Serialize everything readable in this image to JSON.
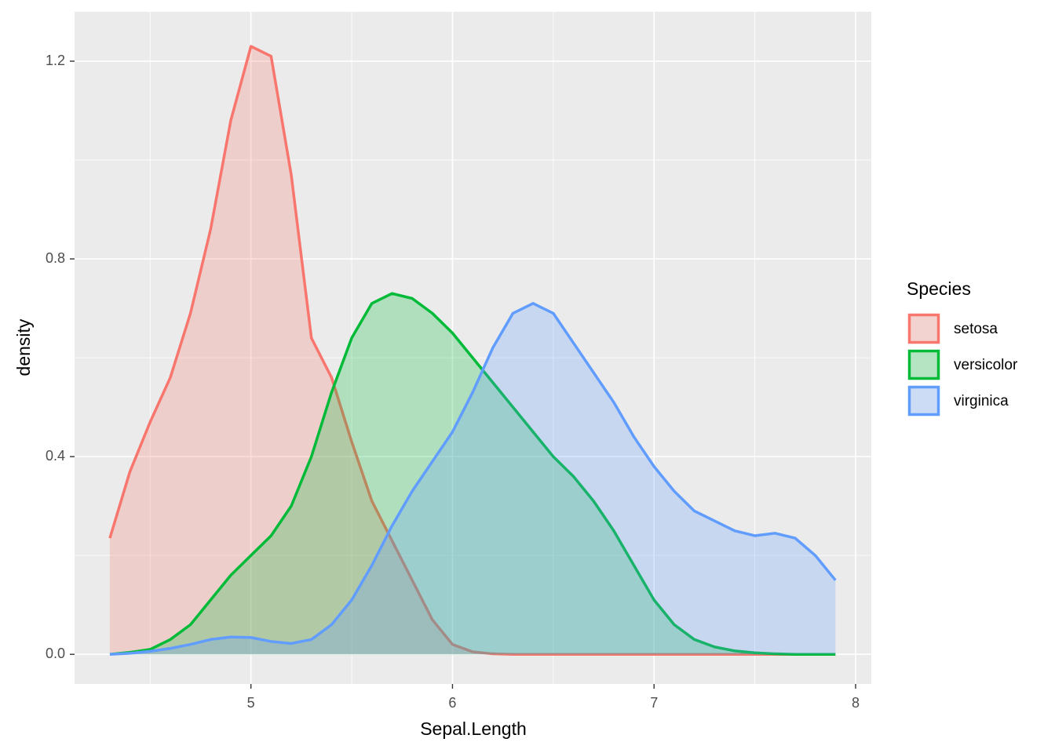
{
  "chart_data": {
    "type": "density",
    "x_label": "Sepal.Length",
    "y_label": "density",
    "legend_title": "Species",
    "legend_position": "right",
    "x": [
      4.3,
      4.4,
      4.5,
      4.6,
      4.7,
      4.8,
      4.9,
      5.0,
      5.1,
      5.2,
      5.3,
      5.4,
      5.5,
      5.6,
      5.7,
      5.8,
      5.9,
      6.0,
      6.1,
      6.2,
      6.3,
      6.4,
      6.5,
      6.6,
      6.7,
      6.8,
      6.9,
      7.0,
      7.1,
      7.2,
      7.3,
      7.4,
      7.5,
      7.6,
      7.7,
      7.8,
      7.9
    ],
    "series": [
      {
        "name": "setosa",
        "color": "#f8766d",
        "values": [
          0.235,
          0.37,
          0.47,
          0.56,
          0.69,
          0.86,
          1.08,
          1.23,
          1.21,
          0.97,
          0.64,
          0.56,
          0.43,
          0.31,
          0.23,
          0.15,
          0.07,
          0.02,
          0.005,
          0.001,
          0,
          0,
          0,
          0,
          0,
          0,
          0,
          0,
          0,
          0,
          0,
          0,
          0,
          0,
          0,
          0,
          0
        ]
      },
      {
        "name": "versicolor",
        "color": "#00ba38",
        "values": [
          0,
          0.004,
          0.01,
          0.03,
          0.06,
          0.11,
          0.16,
          0.2,
          0.24,
          0.3,
          0.4,
          0.53,
          0.64,
          0.71,
          0.73,
          0.72,
          0.69,
          0.65,
          0.6,
          0.55,
          0.5,
          0.45,
          0.4,
          0.36,
          0.31,
          0.25,
          0.18,
          0.11,
          0.06,
          0.03,
          0.015,
          0.007,
          0.003,
          0.001,
          0,
          0,
          0
        ]
      },
      {
        "name": "virginica",
        "color": "#619cff",
        "values": [
          0,
          0.002,
          0.006,
          0.012,
          0.02,
          0.03,
          0.035,
          0.034,
          0.026,
          0.022,
          0.03,
          0.06,
          0.11,
          0.18,
          0.26,
          0.33,
          0.39,
          0.45,
          0.53,
          0.62,
          0.69,
          0.71,
          0.69,
          0.63,
          0.57,
          0.51,
          0.44,
          0.38,
          0.33,
          0.29,
          0.27,
          0.25,
          0.24,
          0.245,
          0.235,
          0.2,
          0.15
        ]
      }
    ],
    "xlim": [
      4.125,
      8.078
    ],
    "ylim": [
      -0.06,
      1.3
    ],
    "xticks": [
      5,
      6,
      7,
      8
    ],
    "yticks": [
      {
        "value": 0,
        "label": "0.0"
      },
      0.4,
      0.8,
      1.2
    ],
    "minor_xticks": [
      4.5,
      5.5,
      6.5,
      7.5
    ],
    "minor_yticks": [
      0.2,
      0.6,
      1.0
    ],
    "grid": true,
    "fill_opacity": 0.25
  }
}
